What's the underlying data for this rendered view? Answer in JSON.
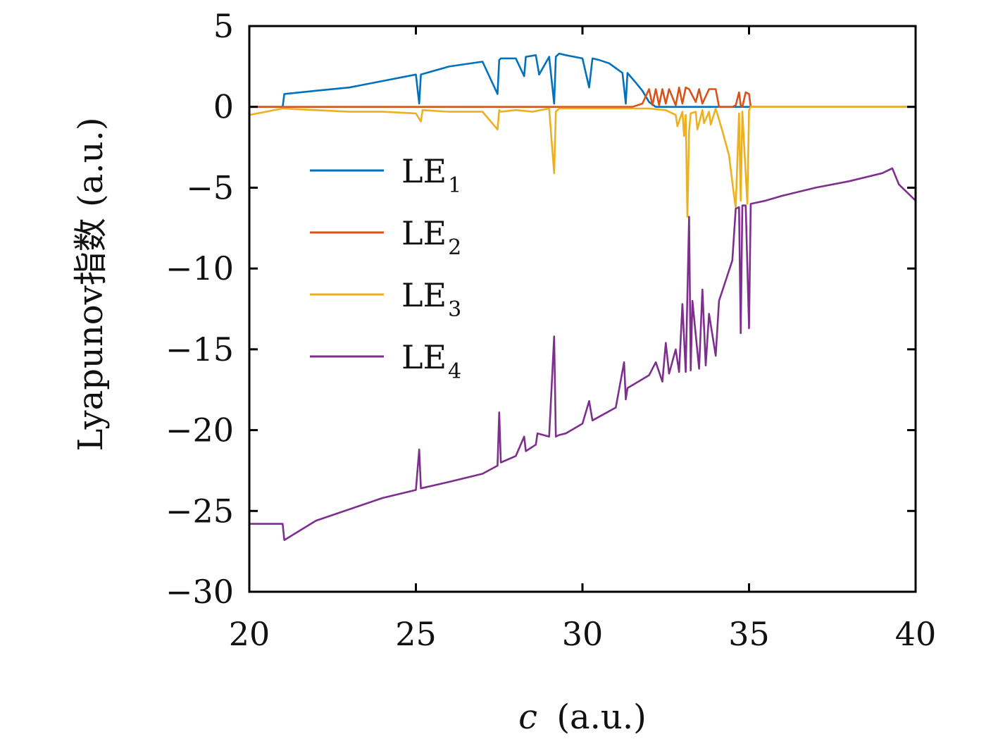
{
  "chart_data": {
    "type": "line",
    "xlabel": "c (a.u.)",
    "xlabel_var": "c",
    "xlabel_unit": "(a.u.)",
    "ylabel": "Lyapunov指数 (a.u.)",
    "xlim": [
      20,
      40
    ],
    "ylim": [
      -30,
      5
    ],
    "xticks": [
      20,
      25,
      30,
      35,
      40
    ],
    "xtick_labels": [
      "20",
      "25",
      "30",
      "35",
      "40"
    ],
    "yticks": [
      5,
      0,
      -5,
      -10,
      -15,
      -20,
      -25,
      -30
    ],
    "ytick_labels": [
      "5",
      "0",
      "−5",
      "−10",
      "−15",
      "−20",
      "−25",
      "−30"
    ],
    "grid": false,
    "legend_position": "center-left",
    "series": [
      {
        "name": "LE1",
        "label_main": "LE",
        "label_sub": "1",
        "color": "#0072BD",
        "x": [
          20,
          21,
          21.05,
          22,
          23,
          24,
          25,
          25.1,
          25.15,
          26,
          27,
          27.45,
          27.5,
          27.55,
          28,
          28.25,
          28.3,
          28.6,
          28.7,
          29.0,
          29.15,
          29.2,
          29.3,
          29.5,
          30,
          30.2,
          30.3,
          30.5,
          30.8,
          31,
          31.2,
          31.3,
          31.35,
          31.6,
          31.8,
          32.0,
          32.2,
          32.5,
          33,
          34,
          35,
          36,
          37,
          38,
          39,
          40
        ],
        "y": [
          0,
          0,
          0.8,
          1.0,
          1.2,
          1.6,
          2.0,
          0.2,
          2.0,
          2.5,
          2.8,
          0.8,
          2.9,
          3.0,
          3.0,
          1.9,
          3.1,
          3.2,
          2.0,
          3.1,
          0.2,
          3.1,
          3.3,
          3.2,
          3.0,
          1.2,
          3.0,
          2.9,
          2.7,
          2.4,
          2.1,
          0.2,
          2.1,
          1.5,
          1.0,
          0.3,
          0,
          0,
          0,
          0,
          0,
          0,
          0,
          0,
          0,
          0
        ]
      },
      {
        "name": "LE2",
        "label_main": "LE",
        "label_sub": "2",
        "color": "#D95319",
        "x": [
          20,
          21,
          25,
          30,
          31.5,
          31.8,
          32.0,
          32.1,
          32.2,
          32.3,
          32.4,
          32.5,
          32.6,
          32.8,
          32.9,
          33.0,
          33.1,
          33.2,
          33.4,
          33.5,
          33.6,
          33.8,
          34.0,
          34.1,
          34.5,
          34.6,
          34.7,
          34.75,
          34.8,
          34.9,
          35.0,
          35.05,
          35.5,
          38,
          40
        ],
        "y": [
          0,
          0,
          0,
          0,
          0,
          0.2,
          1.1,
          0.1,
          1.1,
          0.1,
          1.1,
          0.2,
          1.1,
          0.1,
          1.2,
          0.2,
          1.2,
          1.1,
          0.3,
          1.1,
          0.2,
          1.1,
          1.1,
          0,
          0,
          0.1,
          0.9,
          0.1,
          0,
          0.9,
          0.8,
          0,
          0,
          0,
          0
        ]
      },
      {
        "name": "LE3",
        "label_main": "LE",
        "label_sub": "3",
        "color": "#EDB120",
        "x": [
          20,
          21,
          22,
          23,
          24,
          25,
          25.15,
          25.2,
          26,
          27,
          27.45,
          27.5,
          27.55,
          28,
          28.5,
          29.0,
          29.15,
          29.2,
          29.3,
          30,
          31,
          32,
          32.5,
          32.8,
          32.85,
          33.0,
          33.05,
          33.1,
          33.15,
          33.2,
          33.25,
          33.4,
          33.45,
          33.6,
          33.65,
          33.8,
          33.85,
          34.0,
          34.2,
          34.4,
          34.55,
          34.6,
          34.7,
          34.75,
          34.8,
          34.95,
          35.0,
          35.05,
          36,
          37,
          38,
          39,
          39.3,
          39.5,
          39.8,
          40
        ],
        "y": [
          -0.5,
          -0.1,
          -0.2,
          -0.3,
          -0.3,
          -0.4,
          -0.9,
          -0.2,
          -0.3,
          -0.3,
          -1.4,
          -0.2,
          -0.3,
          -0.2,
          -0.3,
          -0.1,
          -4.1,
          -0.3,
          -0.1,
          -0.1,
          -0.1,
          -0.1,
          -0.2,
          -0.5,
          -1.2,
          -0.3,
          -1.8,
          -0.5,
          -6.8,
          -1.5,
          -0.4,
          -0.3,
          -1.4,
          -0.2,
          -1.0,
          -0.3,
          -1.1,
          -0.1,
          -1.5,
          -3.0,
          -5.5,
          -6.2,
          -0.4,
          -5.8,
          -0.3,
          -6.0,
          -0.2,
          0,
          0,
          0,
          0,
          0,
          0,
          0,
          0,
          0
        ]
      },
      {
        "name": "LE4",
        "label_main": "LE",
        "label_sub": "4",
        "color": "#7E2F8E",
        "x": [
          20,
          21,
          21.05,
          22,
          23,
          24,
          25,
          25.1,
          25.15,
          26,
          27,
          27.45,
          27.5,
          27.55,
          28,
          28.25,
          28.3,
          28.6,
          28.65,
          29.0,
          29.15,
          29.2,
          29.3,
          29.5,
          30,
          30.2,
          30.3,
          31,
          31.25,
          31.3,
          31.35,
          32,
          32.2,
          32.4,
          32.5,
          32.6,
          32.8,
          32.9,
          33.0,
          33.1,
          33.2,
          33.25,
          33.3,
          33.5,
          33.6,
          33.7,
          33.8,
          34.0,
          34.1,
          34.5,
          34.6,
          34.7,
          34.75,
          34.8,
          34.9,
          35.0,
          35.05,
          35.5,
          36,
          37,
          38,
          39,
          39.3,
          39.5,
          39.8,
          40
        ],
        "y": [
          -25.8,
          -25.8,
          -26.8,
          -25.6,
          -24.9,
          -24.2,
          -23.7,
          -21.2,
          -23.6,
          -23.2,
          -22.7,
          -22.2,
          -18.9,
          -22.0,
          -21.6,
          -20.4,
          -21.3,
          -20.9,
          -20.2,
          -20.4,
          -14.2,
          -20.4,
          -20.3,
          -20.2,
          -19.6,
          -18.2,
          -19.4,
          -18.6,
          -15.8,
          -18.1,
          -17.4,
          -16.6,
          -15.8,
          -17.0,
          -14.6,
          -16.5,
          -15.0,
          -16.4,
          -12.2,
          -16.4,
          -6.8,
          -16.3,
          -12.0,
          -16.2,
          -11.3,
          -16.0,
          -12.8,
          -15.4,
          -12.0,
          -9.5,
          -6.3,
          -6.2,
          -14.0,
          -6.1,
          -6.1,
          -13.7,
          -6.0,
          -5.8,
          -5.5,
          -5.0,
          -4.6,
          -4.1,
          -3.8,
          -4.8,
          -5.4,
          -5.8
        ]
      }
    ]
  }
}
